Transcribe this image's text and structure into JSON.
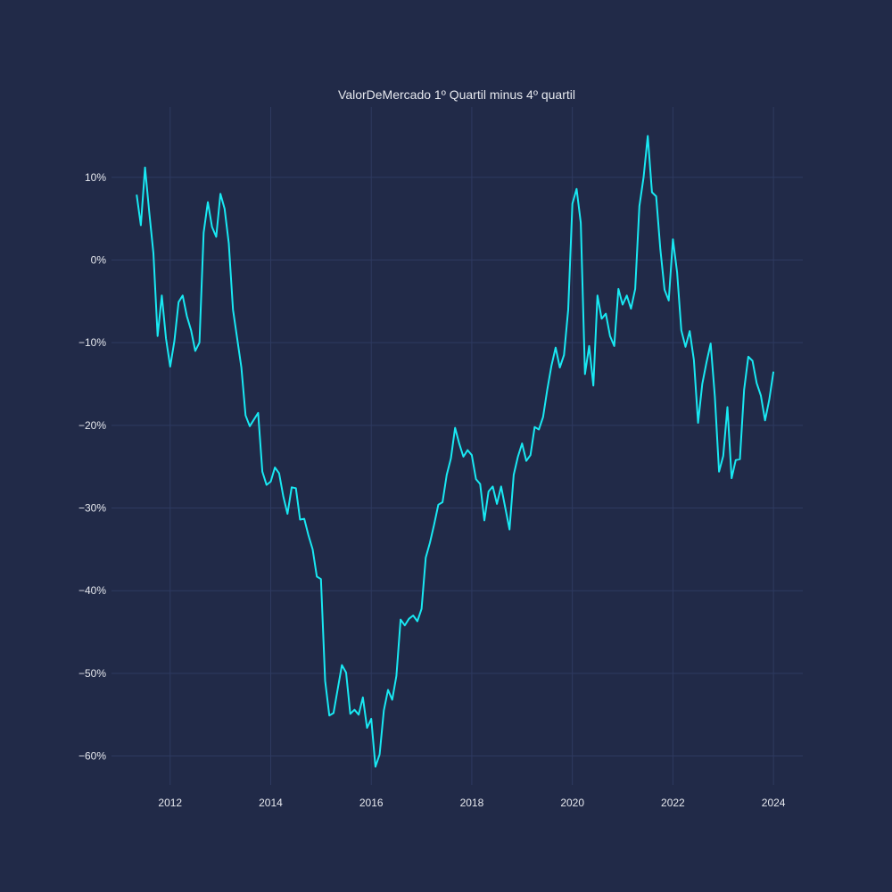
{
  "chart_data": {
    "type": "line",
    "title": "ValorDeMercado 1º Quartil minus 4º quartil",
    "xlabel": "",
    "ylabel": "",
    "x_range": [
      "2010-11-01",
      "2024-08-01"
    ],
    "ylim": [
      -0.635,
      0.185
    ],
    "x_ticks": [
      {
        "date": "2012-01-01",
        "label": "2012"
      },
      {
        "date": "2014-01-01",
        "label": "2014"
      },
      {
        "date": "2016-01-01",
        "label": "2016"
      },
      {
        "date": "2018-01-01",
        "label": "2018"
      },
      {
        "date": "2020-01-01",
        "label": "2020"
      },
      {
        "date": "2022-01-01",
        "label": "2022"
      },
      {
        "date": "2024-01-01",
        "label": "2024"
      }
    ],
    "y_ticks": [
      {
        "value": 0.1,
        "label": "10%"
      },
      {
        "value": 0.0,
        "label": "0%"
      },
      {
        "value": -0.1,
        "label": "−10%"
      },
      {
        "value": -0.2,
        "label": "−20%"
      },
      {
        "value": -0.3,
        "label": "−30%"
      },
      {
        "value": -0.4,
        "label": "−40%"
      },
      {
        "value": -0.5,
        "label": "−50%"
      },
      {
        "value": -0.6,
        "label": "−60%"
      }
    ],
    "grid": true,
    "colors": {
      "line": "#19e8f2",
      "background": "#212a48",
      "grid": "#2e3a60",
      "text": "#e6e8ee"
    },
    "series": [
      {
        "x": [
          "2011-05",
          "2011-06",
          "2011-07",
          "2011-08",
          "2011-09",
          "2011-10",
          "2011-11",
          "2011-12",
          "2012-01",
          "2012-02",
          "2012-03",
          "2012-04",
          "2012-05",
          "2012-06",
          "2012-07",
          "2012-08",
          "2012-09",
          "2012-10",
          "2012-11",
          "2012-12",
          "2013-01",
          "2013-02",
          "2013-03",
          "2013-04",
          "2013-05",
          "2013-06",
          "2013-07",
          "2013-08",
          "2013-09",
          "2013-10",
          "2013-11",
          "2013-12",
          "2014-01",
          "2014-02",
          "2014-03",
          "2014-04",
          "2014-05",
          "2014-06",
          "2014-07",
          "2014-08",
          "2014-09",
          "2014-10",
          "2014-11",
          "2014-12",
          "2015-01",
          "2015-02",
          "2015-03",
          "2015-04",
          "2015-05",
          "2015-06",
          "2015-07",
          "2015-08",
          "2015-09",
          "2015-10",
          "2015-11",
          "2015-12",
          "2016-01",
          "2016-02",
          "2016-03",
          "2016-04",
          "2016-05",
          "2016-06",
          "2016-07",
          "2016-08",
          "2016-09",
          "2016-10",
          "2016-11",
          "2016-12",
          "2017-01",
          "2017-02",
          "2017-03",
          "2017-04",
          "2017-05",
          "2017-06",
          "2017-07",
          "2017-08",
          "2017-09",
          "2017-10",
          "2017-11",
          "2017-12",
          "2018-01",
          "2018-02",
          "2018-03",
          "2018-04",
          "2018-05",
          "2018-06",
          "2018-07",
          "2018-08",
          "2018-09",
          "2018-10",
          "2018-11",
          "2018-12",
          "2019-01",
          "2019-02",
          "2019-03",
          "2019-04",
          "2019-05",
          "2019-06",
          "2019-07",
          "2019-08",
          "2019-09",
          "2019-10",
          "2019-11",
          "2019-12",
          "2020-01",
          "2020-02",
          "2020-03",
          "2020-04",
          "2020-05",
          "2020-06",
          "2020-07",
          "2020-08",
          "2020-09",
          "2020-10",
          "2020-11",
          "2020-12",
          "2021-01",
          "2021-02",
          "2021-03",
          "2021-04",
          "2021-05",
          "2021-06",
          "2021-07",
          "2021-08",
          "2021-09",
          "2021-10",
          "2021-11",
          "2021-12",
          "2022-01",
          "2022-02",
          "2022-03",
          "2022-04",
          "2022-05",
          "2022-06",
          "2022-07",
          "2022-08",
          "2022-09",
          "2022-10",
          "2022-11",
          "2022-12",
          "2023-01",
          "2023-02",
          "2023-03",
          "2023-04",
          "2023-05",
          "2023-06",
          "2023-07",
          "2023-08",
          "2023-09",
          "2023-10",
          "2023-11",
          "2023-12",
          "2024-01"
        ],
        "y": [
          0.079,
          0.042,
          0.112,
          0.058,
          0.008,
          -0.092,
          -0.043,
          -0.095,
          -0.129,
          -0.098,
          -0.051,
          -0.043,
          -0.068,
          -0.085,
          -0.11,
          -0.1,
          0.033,
          0.07,
          0.04,
          0.028,
          0.08,
          0.062,
          0.02,
          -0.06,
          -0.095,
          -0.13,
          -0.188,
          -0.201,
          -0.193,
          -0.185,
          -0.256,
          -0.272,
          -0.268,
          -0.251,
          -0.258,
          -0.286,
          -0.307,
          -0.275,
          -0.276,
          -0.314,
          -0.313,
          -0.333,
          -0.35,
          -0.383,
          -0.386,
          -0.509,
          -0.551,
          -0.548,
          -0.519,
          -0.49,
          -0.499,
          -0.549,
          -0.544,
          -0.55,
          -0.529,
          -0.566,
          -0.555,
          -0.613,
          -0.598,
          -0.545,
          -0.52,
          -0.532,
          -0.503,
          -0.435,
          -0.442,
          -0.434,
          -0.43,
          -0.437,
          -0.422,
          -0.36,
          -0.342,
          -0.32,
          -0.296,
          -0.293,
          -0.26,
          -0.24,
          -0.203,
          -0.222,
          -0.238,
          -0.23,
          -0.236,
          -0.265,
          -0.271,
          -0.315,
          -0.28,
          -0.274,
          -0.295,
          -0.274,
          -0.3,
          -0.326,
          -0.26,
          -0.238,
          -0.222,
          -0.243,
          -0.236,
          -0.202,
          -0.205,
          -0.19,
          -0.157,
          -0.128,
          -0.106,
          -0.13,
          -0.115,
          -0.06,
          0.068,
          0.086,
          0.045,
          -0.138,
          -0.104,
          -0.152,
          -0.043,
          -0.071,
          -0.065,
          -0.092,
          -0.104,
          -0.035,
          -0.054,
          -0.043,
          -0.059,
          -0.035,
          0.065,
          0.1,
          0.15,
          0.082,
          0.077,
          0.013,
          -0.036,
          -0.049,
          0.025,
          -0.015,
          -0.085,
          -0.105,
          -0.086,
          -0.121,
          -0.197,
          -0.15,
          -0.124,
          -0.101,
          -0.165,
          -0.256,
          -0.237,
          -0.178,
          -0.264,
          -0.242,
          -0.241,
          -0.157,
          -0.117,
          -0.122,
          -0.149,
          -0.164,
          -0.194,
          -0.169,
          -0.135
        ]
      }
    ]
  }
}
